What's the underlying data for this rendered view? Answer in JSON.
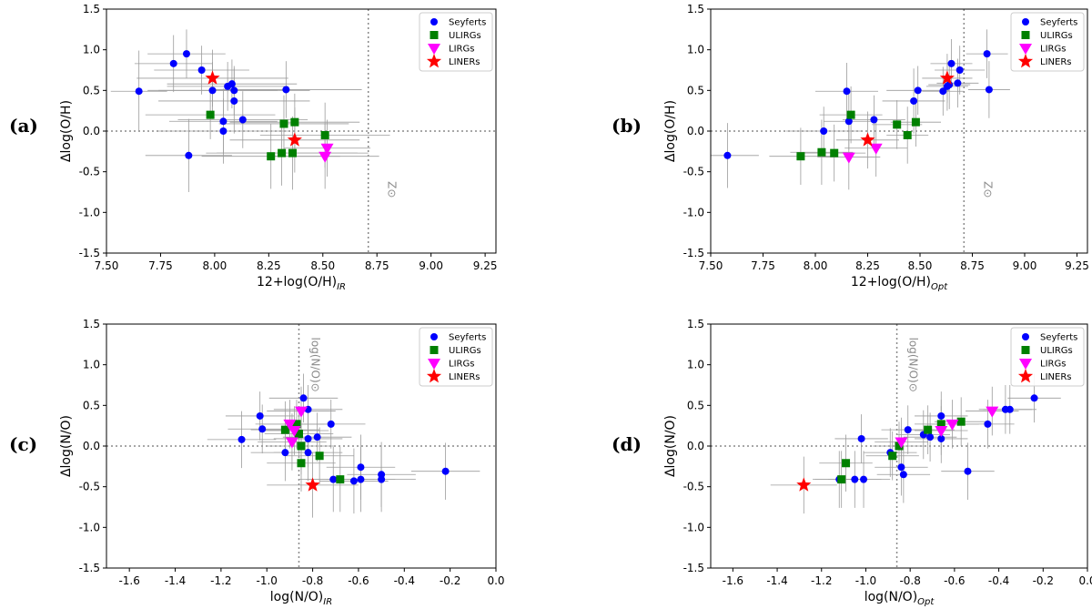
{
  "legend_entries": [
    {
      "name": "Seyferts",
      "color": "#0000ff",
      "marker": "circle"
    },
    {
      "name": "ULIRGs",
      "color": "#008000",
      "marker": "square"
    },
    {
      "name": "LIRGs",
      "color": "#ff00ff",
      "marker": "triangle-down"
    },
    {
      "name": "LINERs",
      "color": "#ff0000",
      "marker": "star"
    }
  ],
  "colors": {
    "errorbar": "#9b9b9b",
    "reference_line": "#8a8a8a",
    "axes": "#000000"
  },
  "chart_data": [
    {
      "panel": "(a)",
      "type": "scatter",
      "xlabel_main": "12+log(O/H)",
      "xlabel_sub": "IR",
      "ylabel": "Δlog(O/H)",
      "xlim": [
        7.5,
        9.3
      ],
      "ylim": [
        -1.5,
        1.5
      ],
      "xticks": [
        "7.50",
        "7.75",
        "8.00",
        "8.25",
        "8.50",
        "8.75",
        "9.00",
        "9.25"
      ],
      "yticks": [
        "-1.5",
        "-1.0",
        "-0.5",
        "0.0",
        "0.5",
        "1.0",
        "1.5"
      ],
      "ref_x": 8.71,
      "ref_y": 0.0,
      "ref_label": "Z⊙",
      "legend_position": "top-right",
      "series": [
        {
          "name": "Seyferts",
          "points": [
            [
              7.65,
              0.49,
              0.13,
              0.5
            ],
            [
              7.81,
              0.83,
              0.18,
              0.35
            ],
            [
              7.87,
              0.95,
              0.18,
              0.3
            ],
            [
              7.88,
              -0.3,
              0.2,
              0.45
            ],
            [
              7.94,
              0.75,
              0.22,
              0.3
            ],
            [
              7.99,
              0.5,
              0.3,
              0.35
            ],
            [
              8.04,
              0.12,
              0.25,
              0.4
            ],
            [
              8.04,
              0.0,
              0.3,
              0.4
            ],
            [
              8.06,
              0.55,
              0.28,
              0.3
            ],
            [
              8.08,
              0.58,
              0.3,
              0.3
            ],
            [
              8.09,
              0.5,
              0.35,
              0.3
            ],
            [
              8.09,
              0.37,
              0.35,
              0.4
            ],
            [
              8.13,
              0.14,
              0.3,
              0.35
            ],
            [
              8.33,
              0.51,
              0.35,
              0.35
            ]
          ]
        },
        {
          "name": "ULIRGs",
          "points": [
            [
              7.98,
              0.2,
              0.3,
              0.3
            ],
            [
              8.26,
              -0.31,
              0.32,
              0.4
            ],
            [
              8.31,
              -0.27,
              0.35,
              0.4
            ],
            [
              8.32,
              0.09,
              0.3,
              0.35
            ],
            [
              8.36,
              -0.27,
              0.35,
              0.45
            ],
            [
              8.37,
              0.11,
              0.3,
              0.35
            ],
            [
              8.51,
              -0.05,
              0.3,
              0.4
            ]
          ]
        },
        {
          "name": "LIRGs",
          "points": [
            [
              8.51,
              -0.31,
              0.25,
              0.4
            ],
            [
              8.52,
              -0.21,
              0.2,
              0.35
            ]
          ]
        },
        {
          "name": "LINERs",
          "points": [
            [
              7.99,
              0.65,
              0.35,
              0.35
            ],
            [
              8.37,
              -0.11,
              0.3,
              0.4
            ]
          ]
        }
      ]
    },
    {
      "panel": "(b)",
      "type": "scatter",
      "xlabel_main": "12+log(O/H)",
      "xlabel_sub": "Opt",
      "ylabel": "Δlog(O/H)",
      "xlim": [
        7.5,
        9.3
      ],
      "ylim": [
        -1.5,
        1.5
      ],
      "xticks": [
        "7.50",
        "7.75",
        "8.00",
        "8.25",
        "8.50",
        "8.75",
        "9.00",
        "9.25"
      ],
      "yticks": [
        "-1.5",
        "-1.0",
        "-0.5",
        "0.0",
        "0.5",
        "1.0",
        "1.5"
      ],
      "ref_x": 8.71,
      "ref_y": 0.0,
      "ref_label": "Z⊙",
      "legend_position": "top-right",
      "series": [
        {
          "name": "Seyferts",
          "points": [
            [
              7.58,
              -0.3,
              0.15,
              0.4
            ],
            [
              8.04,
              0.0,
              0.18,
              0.3
            ],
            [
              8.15,
              0.49,
              0.15,
              0.35
            ],
            [
              8.16,
              0.12,
              0.12,
              0.35
            ],
            [
              8.28,
              0.14,
              0.15,
              0.3
            ],
            [
              8.47,
              0.37,
              0.15,
              0.4
            ],
            [
              8.49,
              0.5,
              0.15,
              0.3
            ],
            [
              8.61,
              0.49,
              0.1,
              0.3
            ],
            [
              8.63,
              0.55,
              0.1,
              0.3
            ],
            [
              8.64,
              0.57,
              0.1,
              0.3
            ],
            [
              8.65,
              0.83,
              0.1,
              0.3
            ],
            [
              8.68,
              0.59,
              0.1,
              0.3
            ],
            [
              8.69,
              0.75,
              0.12,
              0.3
            ],
            [
              8.82,
              0.95,
              0.1,
              0.3
            ],
            [
              8.83,
              0.51,
              0.1,
              0.35
            ]
          ]
        },
        {
          "name": "ULIRGs",
          "points": [
            [
              7.93,
              -0.31,
              0.15,
              0.35
            ],
            [
              8.03,
              -0.26,
              0.15,
              0.4
            ],
            [
              8.09,
              -0.27,
              0.15,
              0.35
            ],
            [
              8.17,
              0.2,
              0.15,
              0.35
            ],
            [
              8.39,
              0.08,
              0.12,
              0.3
            ],
            [
              8.44,
              -0.05,
              0.1,
              0.35
            ],
            [
              8.48,
              0.11,
              0.12,
              0.3
            ]
          ]
        },
        {
          "name": "LIRGs",
          "points": [
            [
              8.16,
              -0.32,
              0.15,
              0.4
            ],
            [
              8.29,
              -0.21,
              0.15,
              0.35
            ]
          ]
        },
        {
          "name": "LINERs",
          "points": [
            [
              8.25,
              -0.11,
              0.15,
              0.35
            ],
            [
              8.63,
              0.65,
              0.12,
              0.3
            ]
          ]
        }
      ]
    },
    {
      "panel": "(c)",
      "type": "scatter",
      "xlabel_main": "log(N/O)",
      "xlabel_sub": "IR",
      "ylabel": "Δlog(N/O)",
      "xlim": [
        -1.7,
        0.0
      ],
      "ylim": [
        -1.5,
        1.5
      ],
      "xticks": [
        "-1.6",
        "-1.4",
        "-1.2",
        "-1.0",
        "-0.8",
        "-0.6",
        "-0.4",
        "-0.2",
        "0.0"
      ],
      "yticks": [
        "-1.5",
        "-1.0",
        "-0.5",
        "0.0",
        "0.5",
        "1.0",
        "1.5"
      ],
      "ref_x": -0.86,
      "ref_y": 0.0,
      "ref_label": "log(N/O)⊙",
      "legend_position": "top-right",
      "series": [
        {
          "name": "Seyferts",
          "points": [
            [
              -1.11,
              0.08,
              0.15,
              0.35
            ],
            [
              -1.03,
              0.37,
              0.15,
              0.3
            ],
            [
              -1.02,
              0.21,
              0.15,
              0.3
            ],
            [
              -0.92,
              -0.08,
              0.15,
              0.35
            ],
            [
              -0.84,
              0.59,
              0.15,
              0.3
            ],
            [
              -0.82,
              0.45,
              0.15,
              0.3
            ],
            [
              -0.82,
              0.09,
              0.15,
              0.35
            ],
            [
              -0.82,
              -0.08,
              0.15,
              0.35
            ],
            [
              -0.78,
              0.11,
              0.15,
              0.3
            ],
            [
              -0.72,
              0.27,
              0.15,
              0.3
            ],
            [
              -0.71,
              -0.41,
              0.15,
              0.4
            ],
            [
              -0.62,
              -0.43,
              0.15,
              0.4
            ],
            [
              -0.59,
              -0.41,
              0.15,
              0.4
            ],
            [
              -0.59,
              -0.26,
              0.15,
              0.4
            ],
            [
              -0.5,
              -0.35,
              0.15,
              0.4
            ],
            [
              -0.5,
              -0.41,
              0.15,
              0.4
            ],
            [
              -0.22,
              -0.31,
              0.15,
              0.35
            ]
          ]
        },
        {
          "name": "ULIRGs",
          "points": [
            [
              -0.92,
              0.2,
              0.15,
              0.35
            ],
            [
              -0.87,
              0.27,
              0.15,
              0.3
            ],
            [
              -0.86,
              0.15,
              0.15,
              0.3
            ],
            [
              -0.85,
              0.0,
              0.15,
              0.35
            ],
            [
              -0.85,
              -0.21,
              0.15,
              0.35
            ],
            [
              -0.77,
              -0.12,
              0.15,
              0.35
            ],
            [
              -0.68,
              -0.41,
              0.15,
              0.4
            ]
          ]
        },
        {
          "name": "LIRGs",
          "points": [
            [
              -0.9,
              0.27,
              0.15,
              0.3
            ],
            [
              -0.88,
              0.19,
              0.15,
              0.3
            ],
            [
              -0.89,
              0.05,
              0.15,
              0.35
            ],
            [
              -0.85,
              0.43,
              0.15,
              0.3
            ]
          ]
        },
        {
          "name": "LINERs",
          "points": [
            [
              -0.8,
              -0.48,
              0.2,
              0.4
            ]
          ]
        }
      ]
    },
    {
      "panel": "(d)",
      "type": "scatter",
      "xlabel_main": "log(N/O)",
      "xlabel_sub": "Opt",
      "ylabel": "Δlog(N/O)",
      "xlim": [
        -1.7,
        0.0
      ],
      "ylim": [
        -1.5,
        1.5
      ],
      "xticks": [
        "-1.6",
        "-1.4",
        "-1.2",
        "-1.0",
        "-0.8",
        "-0.6",
        "-0.4",
        "-0.2",
        "0.0"
      ],
      "yticks": [
        "-1.5",
        "-1.0",
        "-0.5",
        "0.0",
        "0.5",
        "1.0",
        "1.5"
      ],
      "ref_x": -0.86,
      "ref_y": 0.0,
      "ref_label": "log(N/O)⊙",
      "legend_position": "top-right",
      "series": [
        {
          "name": "Seyferts",
          "points": [
            [
              -1.12,
              -0.41,
              0.12,
              0.35
            ],
            [
              -1.05,
              -0.41,
              0.12,
              0.35
            ],
            [
              -1.02,
              0.09,
              0.12,
              0.3
            ],
            [
              -1.01,
              -0.41,
              0.12,
              0.35
            ],
            [
              -0.89,
              -0.08,
              0.12,
              0.3
            ],
            [
              -0.84,
              -0.26,
              0.12,
              0.35
            ],
            [
              -0.83,
              -0.35,
              0.12,
              0.35
            ],
            [
              -0.81,
              0.2,
              0.12,
              0.3
            ],
            [
              -0.74,
              0.14,
              0.12,
              0.3
            ],
            [
              -0.71,
              0.11,
              0.12,
              0.3
            ],
            [
              -0.66,
              0.37,
              0.12,
              0.3
            ],
            [
              -0.66,
              0.09,
              0.12,
              0.3
            ],
            [
              -0.54,
              -0.31,
              0.12,
              0.35
            ],
            [
              -0.45,
              0.27,
              0.12,
              0.3
            ],
            [
              -0.37,
              0.45,
              0.12,
              0.3
            ],
            [
              -0.35,
              0.45,
              0.12,
              0.3
            ],
            [
              -0.24,
              0.59,
              0.12,
              0.3
            ]
          ]
        },
        {
          "name": "ULIRGs",
          "points": [
            [
              -1.11,
              -0.41,
              0.12,
              0.35
            ],
            [
              -1.09,
              -0.21,
              0.12,
              0.35
            ],
            [
              -0.88,
              -0.12,
              0.12,
              0.3
            ],
            [
              -0.85,
              0.0,
              0.12,
              0.3
            ],
            [
              -0.72,
              0.2,
              0.12,
              0.3
            ],
            [
              -0.66,
              0.27,
              0.12,
              0.3
            ],
            [
              -0.57,
              0.3,
              0.12,
              0.3
            ]
          ]
        },
        {
          "name": "LIRGs",
          "points": [
            [
              -0.84,
              0.05,
              0.12,
              0.3
            ],
            [
              -0.66,
              0.19,
              0.12,
              0.3
            ],
            [
              -0.61,
              0.27,
              0.12,
              0.3
            ],
            [
              -0.43,
              0.43,
              0.12,
              0.3
            ]
          ]
        },
        {
          "name": "LINERs",
          "points": [
            [
              -1.28,
              -0.48,
              0.15,
              0.35
            ]
          ]
        }
      ]
    }
  ]
}
